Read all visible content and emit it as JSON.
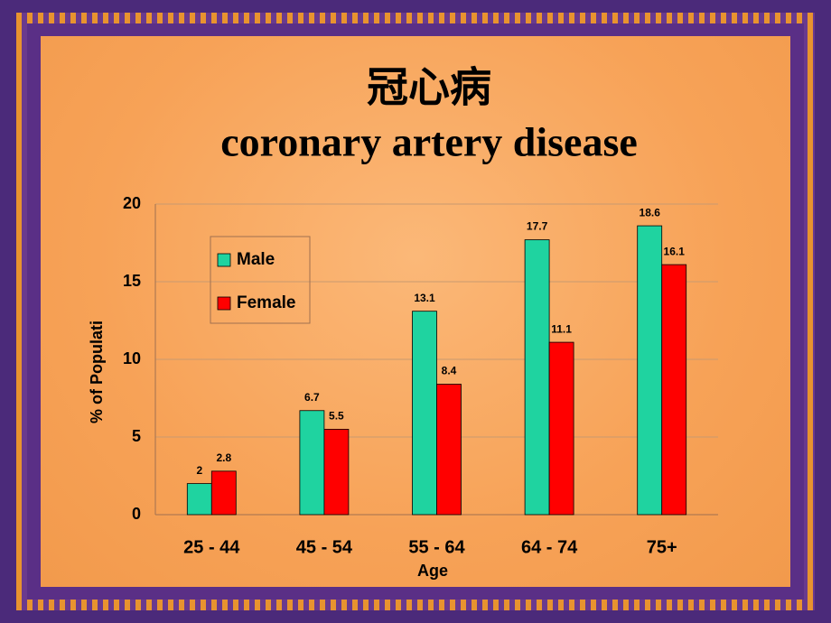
{
  "chart_data": {
    "type": "bar",
    "title": "冠心病",
    "subtitle": "coronary artery disease",
    "x_label": "Age",
    "y_label": "% of Populati",
    "categories": [
      "25 - 44",
      "45 - 54",
      "55 - 64",
      "64 - 74",
      "75+"
    ],
    "series": [
      {
        "name": "Male",
        "color": "#1fd3a0",
        "values": [
          2,
          6.7,
          13.1,
          17.7,
          18.6
        ]
      },
      {
        "name": "Female",
        "color": "#ff0000",
        "values": [
          2.8,
          5.5,
          8.4,
          11.1,
          16.1
        ]
      }
    ],
    "ylim": [
      0,
      20
    ],
    "yticks": [
      0,
      5,
      10,
      15,
      20
    ],
    "grid": true,
    "legend": "top-left"
  }
}
